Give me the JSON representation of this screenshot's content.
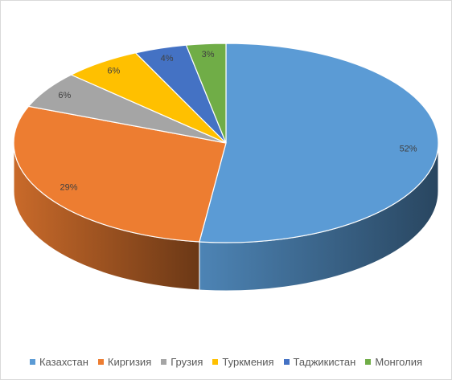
{
  "chart_data": {
    "type": "pie",
    "categories": [
      "Казахстан",
      "Киргизия",
      "Грузия",
      "Туркмения",
      "Таджикистан",
      "Монголия"
    ],
    "values": [
      52,
      29,
      6,
      6,
      4,
      3
    ],
    "labels": [
      "52%",
      "29%",
      "6%",
      "6%",
      "4%",
      "3%"
    ],
    "colors": [
      "#5b9bd5",
      "#ed7d31",
      "#a5a5a5",
      "#ffc000",
      "#4472c4",
      "#70ad47"
    ],
    "legend_position": "bottom",
    "style": "3d-pie"
  }
}
